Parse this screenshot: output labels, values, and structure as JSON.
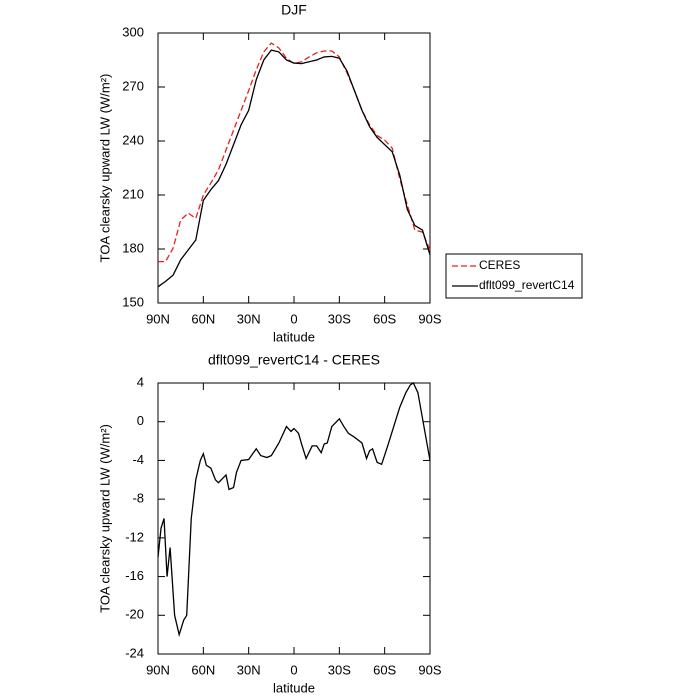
{
  "chart_data": [
    {
      "type": "line",
      "title": "DJF",
      "xlabel": "latitude",
      "ylabel": "TOA clearsky upward LW (W/m²)",
      "x": [
        90,
        85,
        80,
        75,
        70,
        65,
        60,
        55,
        50,
        45,
        40,
        35,
        30,
        25,
        20,
        15,
        10,
        5,
        0,
        -5,
        -10,
        -15,
        -20,
        -25,
        -30,
        -35,
        -40,
        -45,
        -50,
        -55,
        -60,
        -65,
        -70,
        -75,
        -80,
        -85,
        -90
      ],
      "series": [
        {
          "name": "CERES",
          "color": "#e8201c",
          "linestyle": "dashed",
          "values": [
            173,
            173,
            180.5,
            196,
            200,
            197,
            210,
            216.7,
            224,
            235,
            246,
            257,
            268,
            279.5,
            289.5,
            294.4,
            291.7,
            286,
            283,
            284,
            286.7,
            289,
            290,
            290,
            286.7,
            278,
            268,
            257,
            249,
            243,
            240.5,
            236,
            219,
            204.4,
            190.5,
            189.4,
            179.4
          ]
        },
        {
          "name": "dflt099_revertC14",
          "color": "#000000",
          "linestyle": "solid",
          "values": [
            159,
            162,
            165.5,
            174,
            179.5,
            185,
            207,
            213,
            218,
            227,
            238,
            249,
            257,
            274,
            285,
            290.5,
            289.5,
            285,
            283.3,
            283,
            284,
            285,
            286.7,
            287,
            286,
            279,
            268,
            257,
            248,
            242,
            238,
            234,
            221,
            202,
            193,
            190.5,
            176.7
          ]
        }
      ],
      "xlim": [
        90,
        -90
      ],
      "xticks": [
        {
          "value": 90,
          "label": "90N"
        },
        {
          "value": 60,
          "label": "60N"
        },
        {
          "value": 30,
          "label": "30N"
        },
        0,
        {
          "value": -30,
          "label": "30S"
        },
        {
          "value": -60,
          "label": "60S"
        },
        {
          "value": -90,
          "label": "90S"
        }
      ],
      "ylim": [
        150,
        300
      ],
      "yticks": [
        150,
        180,
        210,
        240,
        270,
        300
      ],
      "legend": "right"
    },
    {
      "type": "line",
      "title": "dflt099_revertC14 - CERES",
      "xlabel": "latitude",
      "ylabel": "TOA clearsky upward LW (W/m²)",
      "x": [
        90,
        88,
        86,
        84,
        82,
        79,
        76,
        73,
        71,
        68,
        65,
        62,
        60,
        58,
        55,
        52,
        50,
        45,
        43,
        40,
        38,
        35,
        30,
        25,
        22,
        18,
        15,
        10,
        5,
        2,
        0,
        -3,
        -5,
        -8,
        -12,
        -15,
        -18,
        -20,
        -22,
        -25,
        -30,
        -33,
        -36,
        -40,
        -45,
        -48,
        -50,
        -52,
        -55,
        -58,
        -62,
        -66,
        -70,
        -74,
        -77,
        -79,
        -82,
        -86,
        -90
      ],
      "series": [
        {
          "color": "#000000",
          "linestyle": "solid",
          "values": [
            -14,
            -11,
            -10,
            -16,
            -13,
            -20,
            -22,
            -20.5,
            -20,
            -10,
            -6,
            -4,
            -3.3,
            -4.5,
            -4.8,
            -6,
            -6.3,
            -5.5,
            -7,
            -6.8,
            -5.2,
            -4,
            -3.9,
            -2.8,
            -3.5,
            -3.7,
            -3.5,
            -2.2,
            -0.5,
            -1,
            -0.7,
            -1.2,
            -2.3,
            -3.8,
            -2.5,
            -2.5,
            -3.2,
            -2.3,
            -2.2,
            -0.5,
            0.3,
            -0.5,
            -1.2,
            -1.6,
            -2.2,
            -3.8,
            -3,
            -2.8,
            -4.2,
            -4.4,
            -2.5,
            -0.5,
            1.5,
            3,
            3.8,
            4,
            3,
            -0.5,
            -4
          ]
        }
      ],
      "xlim": [
        90,
        -90
      ],
      "xticks": [
        {
          "value": 90,
          "label": "90N"
        },
        {
          "value": 60,
          "label": "60N"
        },
        {
          "value": 30,
          "label": "30N"
        },
        0,
        {
          "value": -30,
          "label": "30S"
        },
        {
          "value": -60,
          "label": "60S"
        },
        {
          "value": -90,
          "label": "90S"
        }
      ],
      "ylim": [
        -24,
        4
      ],
      "yticks": [
        -24,
        -20,
        -16,
        -12,
        -8,
        -4,
        0,
        4
      ]
    }
  ]
}
